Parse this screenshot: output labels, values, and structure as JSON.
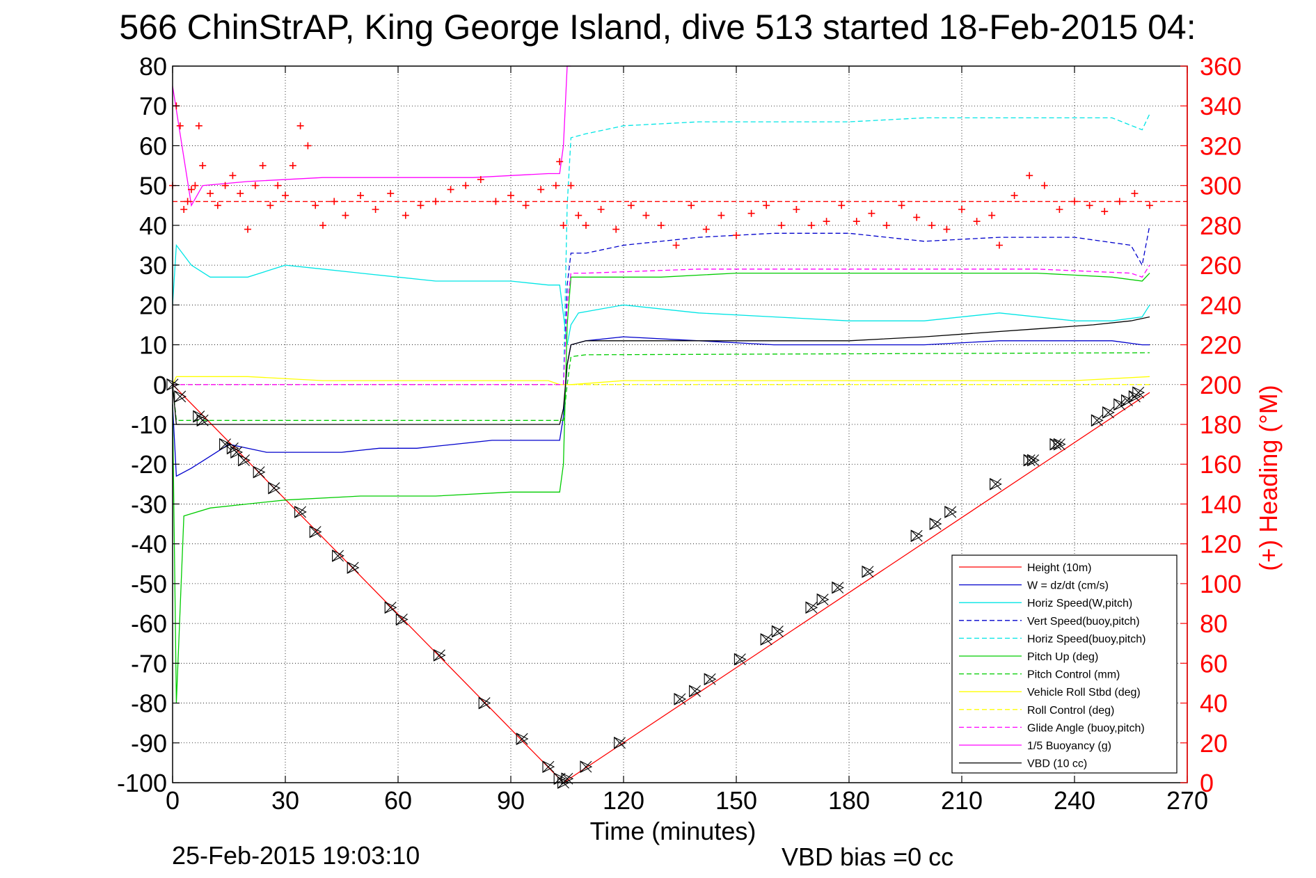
{
  "chart_data": {
    "type": "line",
    "title": "566 ChinStrAP, King George Island, dive 513 started 18-Feb-2015 04:",
    "xlabel": "Time (minutes)",
    "ylabel_right": "(+) Heading (°M)",
    "xlim": [
      0,
      270
    ],
    "ylim": [
      -100,
      80
    ],
    "ylim_right": [
      0,
      360
    ],
    "xticks": [
      0,
      30,
      60,
      90,
      120,
      150,
      180,
      210,
      240,
      270
    ],
    "yticks": [
      80,
      70,
      60,
      50,
      40,
      30,
      20,
      10,
      0,
      -10,
      -20,
      -30,
      -40,
      -50,
      -60,
      -70,
      -80,
      -90,
      -100
    ],
    "yticks_right": [
      360,
      340,
      320,
      300,
      280,
      260,
      240,
      220,
      200,
      180,
      160,
      140,
      120,
      100,
      80,
      60,
      40,
      20,
      0
    ],
    "grid": true,
    "legend_position": "bottom-right",
    "footer_left": "25-Feb-2015 19:03:10",
    "footer_right": "VBD bias =0 cc",
    "series": [
      {
        "name": "Height (10m)",
        "color": "#ff0000",
        "style": "solid",
        "x": [
          0,
          104,
          260
        ],
        "y": [
          0,
          -100,
          -2
        ]
      },
      {
        "name": "W = dz/dt (cm/s)",
        "color": "#0000cc",
        "style": "solid",
        "x": [
          0,
          1,
          5,
          10,
          15,
          25,
          35,
          45,
          55,
          65,
          75,
          85,
          95,
          103,
          104,
          105,
          106,
          110,
          120,
          140,
          160,
          180,
          200,
          220,
          240,
          250,
          258,
          260
        ],
        "y": [
          -5,
          -23,
          -21,
          -18,
          -15,
          -17,
          -17,
          -17,
          -16,
          -16,
          -15,
          -14,
          -14,
          -14,
          -8,
          5,
          10,
          11,
          12,
          11,
          10,
          10,
          10,
          11,
          11,
          11,
          10,
          10
        ]
      },
      {
        "name": "Horiz Speed(W,pitch)",
        "color": "#00e5e5",
        "style": "solid",
        "x": [
          0,
          1,
          5,
          10,
          20,
          30,
          40,
          50,
          60,
          70,
          80,
          90,
          100,
          103,
          105,
          106,
          108,
          120,
          140,
          160,
          180,
          200,
          220,
          240,
          250,
          258,
          260
        ],
        "y": [
          20,
          35,
          30,
          27,
          27,
          30,
          29,
          28,
          27,
          26,
          26,
          26,
          25,
          25,
          10,
          15,
          18,
          20,
          18,
          17,
          16,
          16,
          18,
          16,
          16,
          17,
          20
        ]
      },
      {
        "name": "Vert Speed(buoy,pitch)",
        "color": "#0000cc",
        "style": "dashed",
        "x": [
          0,
          103,
          104,
          105,
          106,
          110,
          120,
          140,
          160,
          180,
          200,
          220,
          240,
          255,
          258,
          260
        ],
        "y": [
          0,
          0,
          0,
          25,
          33,
          33,
          35,
          37,
          38,
          38,
          36,
          37,
          37,
          35,
          30,
          40
        ]
      },
      {
        "name": "Horiz Speed(buoy,pitch)",
        "color": "#00e5e5",
        "style": "dashed",
        "x": [
          0,
          103,
          104,
          105,
          106,
          110,
          120,
          140,
          160,
          180,
          200,
          220,
          240,
          250,
          258,
          260
        ],
        "y": [
          0,
          0,
          0,
          45,
          62,
          63,
          65,
          66,
          66,
          66,
          67,
          67,
          67,
          67,
          64,
          68
        ]
      },
      {
        "name": "Pitch Up (deg)",
        "color": "#00cc00",
        "style": "solid",
        "x": [
          0,
          1,
          3,
          10,
          20,
          30,
          50,
          70,
          90,
          100,
          103,
          104,
          105,
          106,
          110,
          130,
          150,
          170,
          190,
          210,
          230,
          250,
          258,
          260
        ],
        "y": [
          -5,
          -80,
          -33,
          -31,
          -30,
          -29,
          -28,
          -28,
          -27,
          -27,
          -27,
          -20,
          15,
          27,
          27,
          27,
          28,
          28,
          28,
          28,
          28,
          27,
          26,
          28
        ]
      },
      {
        "name": "Pitch Control (mm)",
        "color": "#00cc00",
        "style": "dashed",
        "x": [
          0,
          1,
          103,
          104,
          105,
          106,
          110,
          260
        ],
        "y": [
          0,
          -9,
          -9,
          -9,
          0,
          7,
          7.5,
          8
        ]
      },
      {
        "name": "Vehicle Roll Stbd (deg)",
        "color": "#ffff00",
        "style": "solid",
        "x": [
          0,
          1,
          20,
          40,
          60,
          80,
          100,
          103,
          106,
          120,
          140,
          160,
          180,
          200,
          220,
          240,
          260
        ],
        "y": [
          0,
          2,
          2,
          1,
          1,
          1,
          1,
          0,
          0,
          1,
          1,
          1,
          1,
          1,
          1,
          1,
          2
        ]
      },
      {
        "name": "Roll Control (deg)",
        "color": "#ffff00",
        "style": "dashed",
        "x": [
          0,
          103,
          104,
          260
        ],
        "y": [
          0,
          0,
          0,
          0
        ]
      },
      {
        "name": "Glide Angle (buoy,pitch)",
        "color": "#ff00ff",
        "style": "dashed",
        "x": [
          0,
          103,
          104,
          105,
          106,
          110,
          140,
          170,
          200,
          230,
          255,
          258,
          260
        ],
        "y": [
          0,
          0,
          0,
          20,
          28,
          28,
          29,
          29,
          29,
          29,
          28,
          27,
          30
        ]
      },
      {
        "name": "1/5 Buoyancy (g)",
        "color": "#ff00ff",
        "style": "solid",
        "x": [
          0,
          5,
          8,
          20,
          40,
          60,
          80,
          100,
          103,
          104,
          105,
          106
        ],
        "y": [
          75,
          45,
          50,
          51,
          52,
          52,
          52,
          53,
          53,
          60,
          80,
          80
        ]
      },
      {
        "name": "VBD (10 cc)",
        "color": "#000000",
        "style": "solid",
        "x": [
          0,
          1,
          103,
          104,
          105,
          106,
          110,
          120,
          150,
          180,
          200,
          215,
          230,
          245,
          255,
          260
        ],
        "y": [
          0,
          -10,
          -10,
          -6,
          5,
          10,
          11,
          11,
          11,
          11,
          12,
          13,
          14,
          15,
          16,
          17
        ]
      }
    ],
    "heading_series": {
      "color": "#ff0000",
      "marker": "+",
      "mean": 292,
      "x": [
        0,
        1,
        2,
        3,
        4,
        5,
        6,
        7,
        8,
        10,
        12,
        14,
        16,
        18,
        20,
        22,
        24,
        26,
        28,
        30,
        32,
        34,
        36,
        38,
        40,
        43,
        46,
        50,
        54,
        58,
        62,
        66,
        70,
        74,
        78,
        82,
        86,
        90,
        94,
        98,
        102,
        103,
        104,
        106,
        108,
        110,
        114,
        118,
        122,
        126,
        130,
        134,
        138,
        142,
        146,
        150,
        154,
        158,
        162,
        166,
        170,
        174,
        178,
        182,
        186,
        190,
        194,
        198,
        202,
        206,
        210,
        214,
        218,
        220,
        224,
        228,
        232,
        236,
        240,
        244,
        248,
        252,
        256,
        260
      ],
      "y": [
        300,
        340,
        330,
        288,
        292,
        298,
        300,
        330,
        310,
        296,
        290,
        300,
        305,
        296,
        278,
        300,
        310,
        290,
        300,
        295,
        310,
        330,
        320,
        290,
        280,
        292,
        285,
        295,
        288,
        296,
        285,
        290,
        292,
        298,
        300,
        303,
        292,
        295,
        290,
        298,
        300,
        312,
        280,
        300,
        285,
        280,
        288,
        278,
        290,
        285,
        280,
        270,
        290,
        278,
        285,
        275,
        286,
        290,
        280,
        288,
        280,
        282,
        290,
        282,
        286,
        280,
        290,
        284,
        280,
        278,
        288,
        282,
        285,
        270,
        295,
        305,
        300,
        288,
        292,
        290,
        287,
        292,
        296,
        290
      ]
    },
    "markers": {
      "x": [
        0,
        2,
        7,
        8,
        14,
        16,
        17,
        19,
        23,
        27,
        34,
        38,
        44,
        48,
        58,
        61,
        71,
        83,
        93,
        100,
        103,
        104,
        105,
        110,
        119,
        135,
        139,
        143,
        151,
        158,
        161,
        170,
        173,
        177,
        185,
        198,
        203,
        207,
        219,
        228,
        229,
        235,
        236,
        246,
        249,
        252,
        254,
        256,
        257
      ],
      "y": [
        0,
        -3,
        -8,
        -9,
        -15,
        -16,
        -17,
        -19,
        -22,
        -26,
        -32,
        -37,
        -43,
        -46,
        -56,
        -59,
        -68,
        -80,
        -89,
        -96,
        -99,
        -100,
        -99,
        -96,
        -90,
        -79,
        -77,
        -74,
        -69,
        -64,
        -62,
        -56,
        -54,
        -51,
        -47,
        -38,
        -35,
        -32,
        -25,
        -19,
        -19,
        -15,
        -15,
        -9,
        -7,
        -5,
        -4,
        -3,
        -2
      ]
    }
  }
}
